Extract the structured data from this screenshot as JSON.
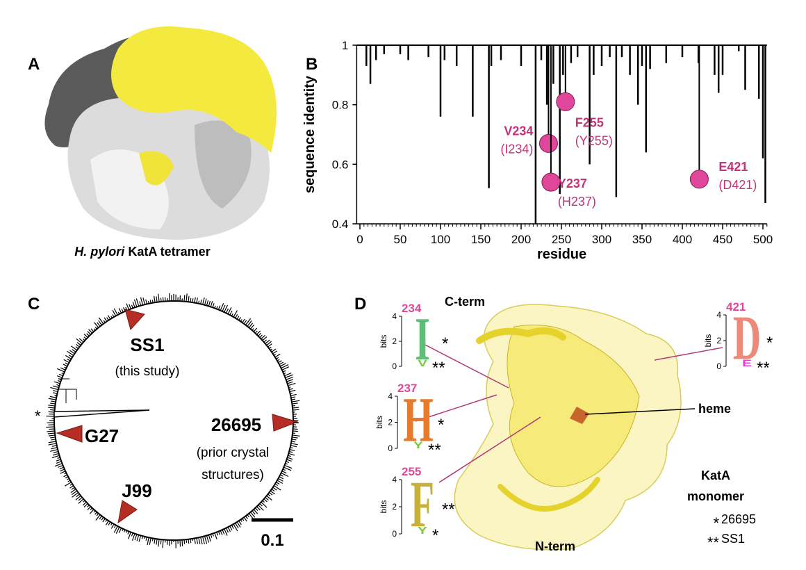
{
  "panels": {
    "A": {
      "label": "A",
      "caption_italic": "H. pylori",
      "caption": "KatA tetramer"
    },
    "B": {
      "label": "B"
    },
    "C": {
      "label": "C",
      "ss1": "SS1",
      "ss1_note": "(this study)",
      "ref": "26695",
      "ref_note_1": "(prior crystal",
      "ref_note_2": "structures)",
      "g27": "G27",
      "j99": "J99",
      "star": "*",
      "scale": "0.1"
    },
    "D": {
      "label": "D",
      "c_term": "C-term",
      "n_term": "N-term",
      "heme": "heme",
      "title_1": "KatA",
      "title_2": "monomer",
      "legend": [
        {
          "mark": "*",
          "text": "26695"
        },
        {
          "mark": "**",
          "text": "SS1"
        }
      ],
      "logo_axis": {
        "title": "bits",
        "ticks": [
          0,
          2,
          4
        ]
      },
      "logos": [
        {
          "position": "234",
          "top": "I",
          "top_mark": "*",
          "bottom": "V",
          "bottom_mark": "**"
        },
        {
          "position": "237",
          "top": "H",
          "top_mark": "*",
          "bottom": "Y",
          "bottom_mark": "**"
        },
        {
          "position": "255",
          "top": "F",
          "top_mark": "**",
          "bottom": "Y",
          "bottom_mark": "*"
        },
        {
          "position": "421",
          "top": "D",
          "top_mark": "*",
          "bottom": "E",
          "bottom_mark": "**"
        }
      ]
    }
  },
  "chart_data": {
    "type": "spike",
    "xlabel": "residue",
    "ylabel": "sequence identity",
    "xlim": [
      -4,
      505
    ],
    "ylim": [
      0.4,
      1
    ],
    "xticks": [
      0,
      50,
      100,
      150,
      200,
      250,
      300,
      350,
      400,
      450,
      500
    ],
    "yticks": [
      0.4,
      0.6,
      0.8,
      1
    ],
    "color": "#000000",
    "x": [
      8,
      13,
      20,
      30,
      50,
      60,
      85,
      100,
      105,
      120,
      140,
      160,
      163,
      175,
      200,
      218,
      225,
      232,
      240,
      248,
      252,
      262,
      270,
      285,
      290,
      300,
      310,
      318,
      325,
      335,
      345,
      350,
      355,
      360,
      380,
      400,
      420,
      440,
      445,
      450,
      470,
      478,
      495,
      500,
      503
    ],
    "values": [
      0.93,
      0.87,
      0.95,
      0.97,
      0.97,
      0.95,
      0.96,
      0.76,
      0.95,
      0.93,
      0.76,
      0.52,
      0.93,
      0.95,
      0.93,
      0.4,
      0.95,
      0.8,
      0.87,
      0.5,
      0.9,
      0.94,
      0.96,
      0.6,
      0.9,
      0.93,
      0.96,
      0.49,
      0.96,
      0.9,
      0.8,
      0.93,
      0.64,
      0.92,
      0.94,
      0.96,
      0.94,
      0.9,
      0.84,
      0.9,
      0.98,
      0.85,
      0.82,
      0.62,
      0.47
    ],
    "highlights": {
      "color": "#e0479a",
      "x": [
        234,
        237,
        255,
        421
      ],
      "values": [
        0.67,
        0.54,
        0.81,
        0.55
      ],
      "labels": [
        "V234",
        "Y237",
        "F255",
        "E421"
      ],
      "sublabels": [
        "(I234)",
        "(H237)",
        "(Y255)",
        "(D421)"
      ]
    }
  }
}
